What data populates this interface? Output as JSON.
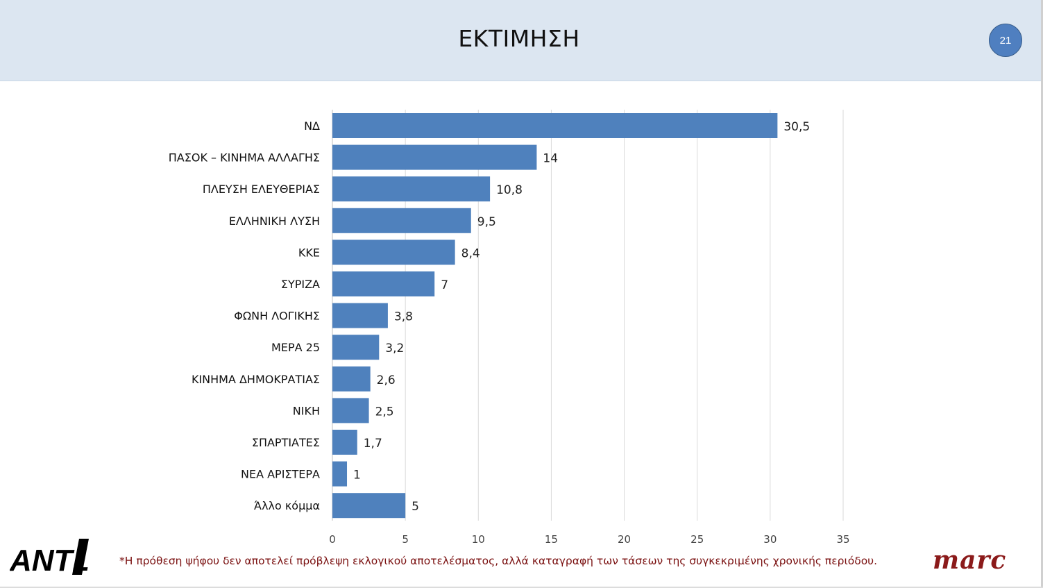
{
  "header": {
    "title": "ΕΚΤΙΜΗΣΗ",
    "page_number": "21",
    "background": "#dce6f1"
  },
  "chart_data": {
    "type": "bar",
    "orientation": "horizontal",
    "categories": [
      "ΝΔ",
      "ΠΑΣΟΚ – ΚΙΝΗΜΑ ΑΛΛΑΓΗΣ",
      "ΠΛΕΥΣΗ ΕΛΕΥΘΕΡΙΑΣ",
      "ΕΛΛΗΝΙΚΗ ΛΥΣΗ",
      "ΚΚΕ",
      "ΣΥΡΙΖΑ",
      "ΦΩΝΗ ΛΟΓΙΚΗΣ",
      "ΜΕΡΑ 25",
      "ΚΙΝΗΜΑ ΔΗΜΟΚΡΑΤΙΑΣ",
      "ΝΙΚΗ",
      "ΣΠΑΡΤΙΑΤΕΣ",
      "ΝΕΑ ΑΡΙΣΤΕΡΑ",
      "Άλλο κόμμα"
    ],
    "values": [
      30.5,
      14,
      10.8,
      9.5,
      8.4,
      7,
      3.8,
      3.2,
      2.6,
      2.5,
      1.7,
      1,
      5
    ],
    "value_labels": [
      "30,5",
      "14",
      "10,8",
      "9,5",
      "8,4",
      "7",
      "3,8",
      "3,2",
      "2,6",
      "2,5",
      "1,7",
      "1",
      "5"
    ],
    "xlim": [
      0,
      35
    ],
    "xticks": [
      0,
      5,
      10,
      15,
      20,
      25,
      30,
      35
    ],
    "grid": true,
    "bar_color": "#4f81bd",
    "title": "",
    "xlabel": "",
    "ylabel": ""
  },
  "footer": {
    "footnote": "*Η πρόθεση ψήφου δεν αποτελεί πρόβλεψη εκλογικού αποτελέσματος, αλλά καταγραφή των τάσεων της συγκεκριμένης χρονικής περιόδου.",
    "logo_left": "ANT1",
    "logo_right": "marc",
    "footnote_color": "#7a1010"
  }
}
